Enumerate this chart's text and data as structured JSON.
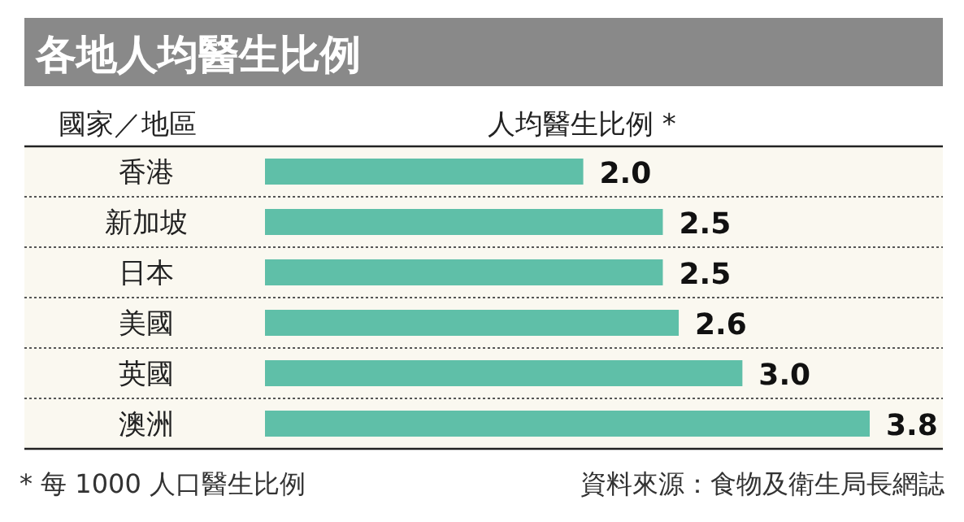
{
  "chart_data": {
    "type": "bar",
    "orientation": "horizontal",
    "title": "各地人均醫生比例",
    "ylabel": "國家／地區",
    "xlabel": "人均醫生比例 *",
    "categories": [
      "香港",
      "新加坡",
      "日本",
      "美國",
      "英國",
      "澳洲"
    ],
    "values": [
      2.0,
      2.5,
      2.5,
      2.6,
      3.0,
      3.8
    ],
    "value_labels": [
      "2.0",
      "2.5",
      "2.5",
      "2.6",
      "3.0",
      "3.8"
    ],
    "color": "#5fbfa8",
    "annotations": [
      "* 每 1000 人口醫生比例",
      "資料來源：食物及衛生局長網誌"
    ]
  }
}
